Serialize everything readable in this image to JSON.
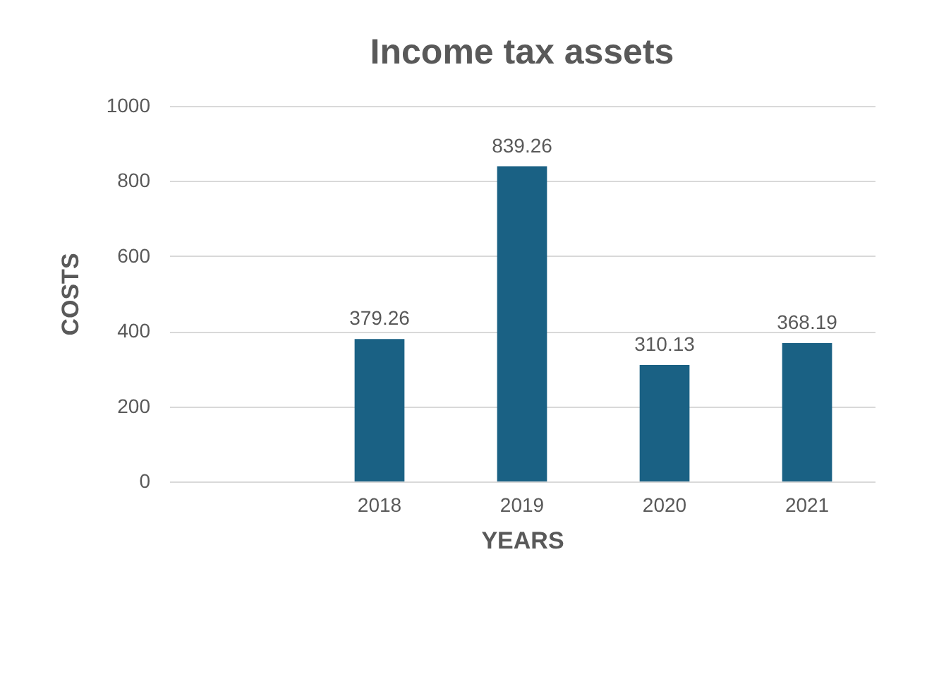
{
  "chart_data": {
    "type": "bar",
    "title": "Income tax assets",
    "xlabel": "YEARS",
    "ylabel": "COSTS",
    "categories": [
      null,
      "2018",
      "2019",
      "2020",
      "2021"
    ],
    "values": [
      null,
      379.26,
      839.26,
      310.13,
      368.19
    ],
    "color": "#1a6184",
    "ylim": [
      0,
      1000
    ],
    "yticks": [
      0,
      200,
      400,
      600,
      800,
      1000
    ],
    "grid": "y",
    "data_labels": true
  }
}
